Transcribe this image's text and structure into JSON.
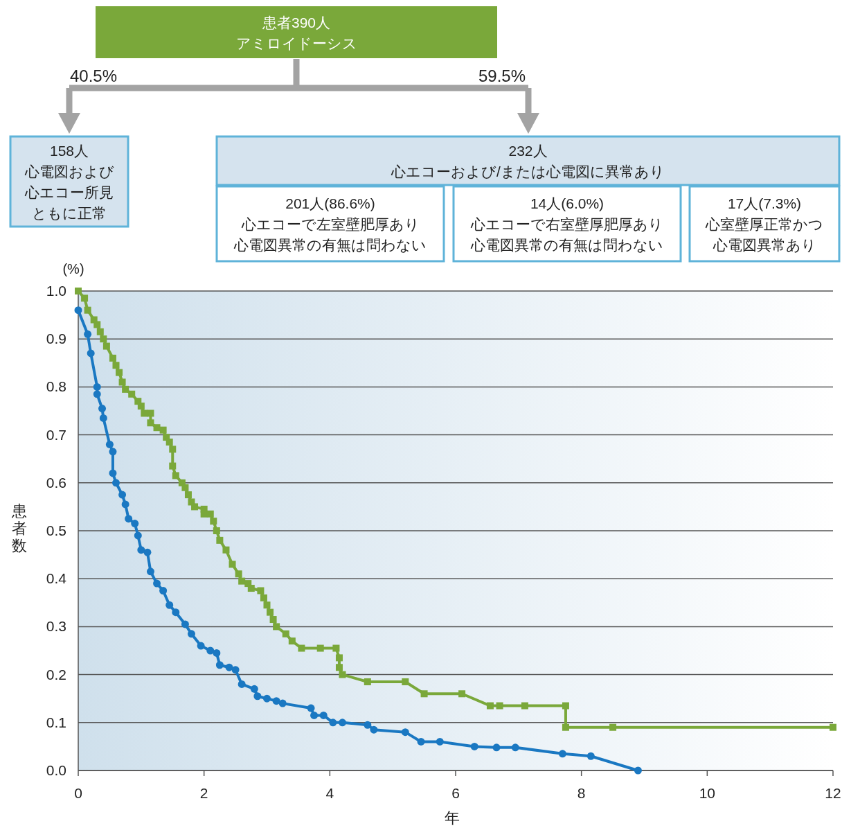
{
  "chart_data": {
    "type": "line",
    "xlabel": "年",
    "ylabel": "患者数",
    "annotations": [
      "(%)",
      "患者390人",
      "アミロイドーシス",
      "40.5%",
      "59.5%",
      "158人",
      "心電図および",
      "心エコー所見",
      "ともに正常",
      "232人",
      "心エコーおよび/または心電図に異常あり",
      "201人(86.6%)",
      "心エコーで左室壁肥厚あり",
      "心電図異常の有無は問わない",
      "14人(6.0%)",
      "心エコーで右室壁厚肥厚あり",
      "心電図異常の有無は問わない",
      "17人(7.3%)",
      "心室壁厚正常かつ",
      "心電図異常あり"
    ],
    "xlim": [
      0,
      12
    ],
    "xticks": [
      0,
      2,
      4,
      6,
      8,
      10,
      12
    ],
    "ylim": [
      0,
      1
    ],
    "yticks": [
      {
        "value": 0,
        "label": "0.0"
      },
      {
        "value": 0.1,
        "label": "0.1"
      },
      {
        "value": 0.2,
        "label": "0.2"
      },
      {
        "value": 0.3,
        "label": "0.3"
      },
      {
        "value": 0.4,
        "label": "0.4"
      },
      {
        "value": 0.5,
        "label": "0.5"
      },
      {
        "value": 0.6,
        "label": "0.6"
      },
      {
        "value": 0.7,
        "label": "0.7"
      },
      {
        "value": 0.8,
        "label": "0.8"
      },
      {
        "value": 0.9,
        "label": "0.9"
      },
      {
        "value": 1,
        "label": "1.0"
      }
    ],
    "grid": "y",
    "line_style": "solid",
    "series": [
      {
        "color": "#7aa83a",
        "marker": "square",
        "x": [
          0,
          0.1,
          0.15,
          0.25,
          0.3,
          0.35,
          0.4,
          0.45,
          0.55,
          0.6,
          0.65,
          0.7,
          0.75,
          0.85,
          0.95,
          1.0,
          1.05,
          1.15,
          1.15,
          1.25,
          1.35,
          1.4,
          1.45,
          1.5,
          1.5,
          1.55,
          1.65,
          1.7,
          1.75,
          1.8,
          1.85,
          2.0,
          2.0,
          2.1,
          2.15,
          2.2,
          2.25,
          2.35,
          2.45,
          2.55,
          2.6,
          2.7,
          2.75,
          2.9,
          2.95,
          3.0,
          3.05,
          3.1,
          3.15,
          3.3,
          3.4,
          3.55,
          3.85,
          4.1,
          4.15,
          4.15,
          4.2,
          4.6,
          5.2,
          5.5,
          6.1,
          6.55,
          6.7,
          7.1,
          7.75,
          7.75,
          8.5,
          12
        ],
        "values": [
          1.0,
          0.985,
          0.96,
          0.94,
          0.93,
          0.915,
          0.9,
          0.885,
          0.86,
          0.845,
          0.83,
          0.81,
          0.795,
          0.785,
          0.77,
          0.76,
          0.745,
          0.745,
          0.725,
          0.715,
          0.71,
          0.695,
          0.685,
          0.67,
          0.635,
          0.615,
          0.6,
          0.59,
          0.575,
          0.56,
          0.55,
          0.545,
          0.535,
          0.535,
          0.52,
          0.5,
          0.48,
          0.46,
          0.43,
          0.41,
          0.395,
          0.39,
          0.38,
          0.375,
          0.36,
          0.345,
          0.33,
          0.315,
          0.3,
          0.285,
          0.27,
          0.255,
          0.255,
          0.255,
          0.235,
          0.215,
          0.2,
          0.185,
          0.185,
          0.16,
          0.16,
          0.135,
          0.135,
          0.135,
          0.135,
          0.09,
          0.09,
          0.09
        ]
      },
      {
        "color": "#1a78c2",
        "marker": "circle",
        "x": [
          0,
          0.15,
          0.2,
          0.3,
          0.3,
          0.38,
          0.4,
          0.5,
          0.55,
          0.55,
          0.6,
          0.7,
          0.75,
          0.8,
          0.9,
          0.95,
          1.0,
          1.1,
          1.15,
          1.25,
          1.35,
          1.45,
          1.55,
          1.7,
          1.8,
          1.95,
          2.1,
          2.2,
          2.25,
          2.4,
          2.5,
          2.6,
          2.8,
          2.85,
          3.0,
          3.15,
          3.25,
          3.7,
          3.75,
          3.9,
          4.05,
          4.2,
          4.6,
          4.7,
          5.2,
          5.45,
          5.75,
          6.3,
          6.65,
          6.95,
          7.7,
          8.15,
          8.9
        ],
        "values": [
          0.96,
          0.91,
          0.87,
          0.8,
          0.785,
          0.755,
          0.735,
          0.68,
          0.665,
          0.62,
          0.6,
          0.575,
          0.555,
          0.525,
          0.515,
          0.49,
          0.46,
          0.455,
          0.415,
          0.39,
          0.375,
          0.345,
          0.33,
          0.305,
          0.285,
          0.26,
          0.25,
          0.245,
          0.22,
          0.215,
          0.21,
          0.18,
          0.17,
          0.155,
          0.15,
          0.145,
          0.14,
          0.13,
          0.115,
          0.115,
          0.1,
          0.1,
          0.095,
          0.085,
          0.08,
          0.06,
          0.06,
          0.05,
          0.048,
          0.048,
          0.035,
          0.03,
          0
        ]
      }
    ]
  }
}
